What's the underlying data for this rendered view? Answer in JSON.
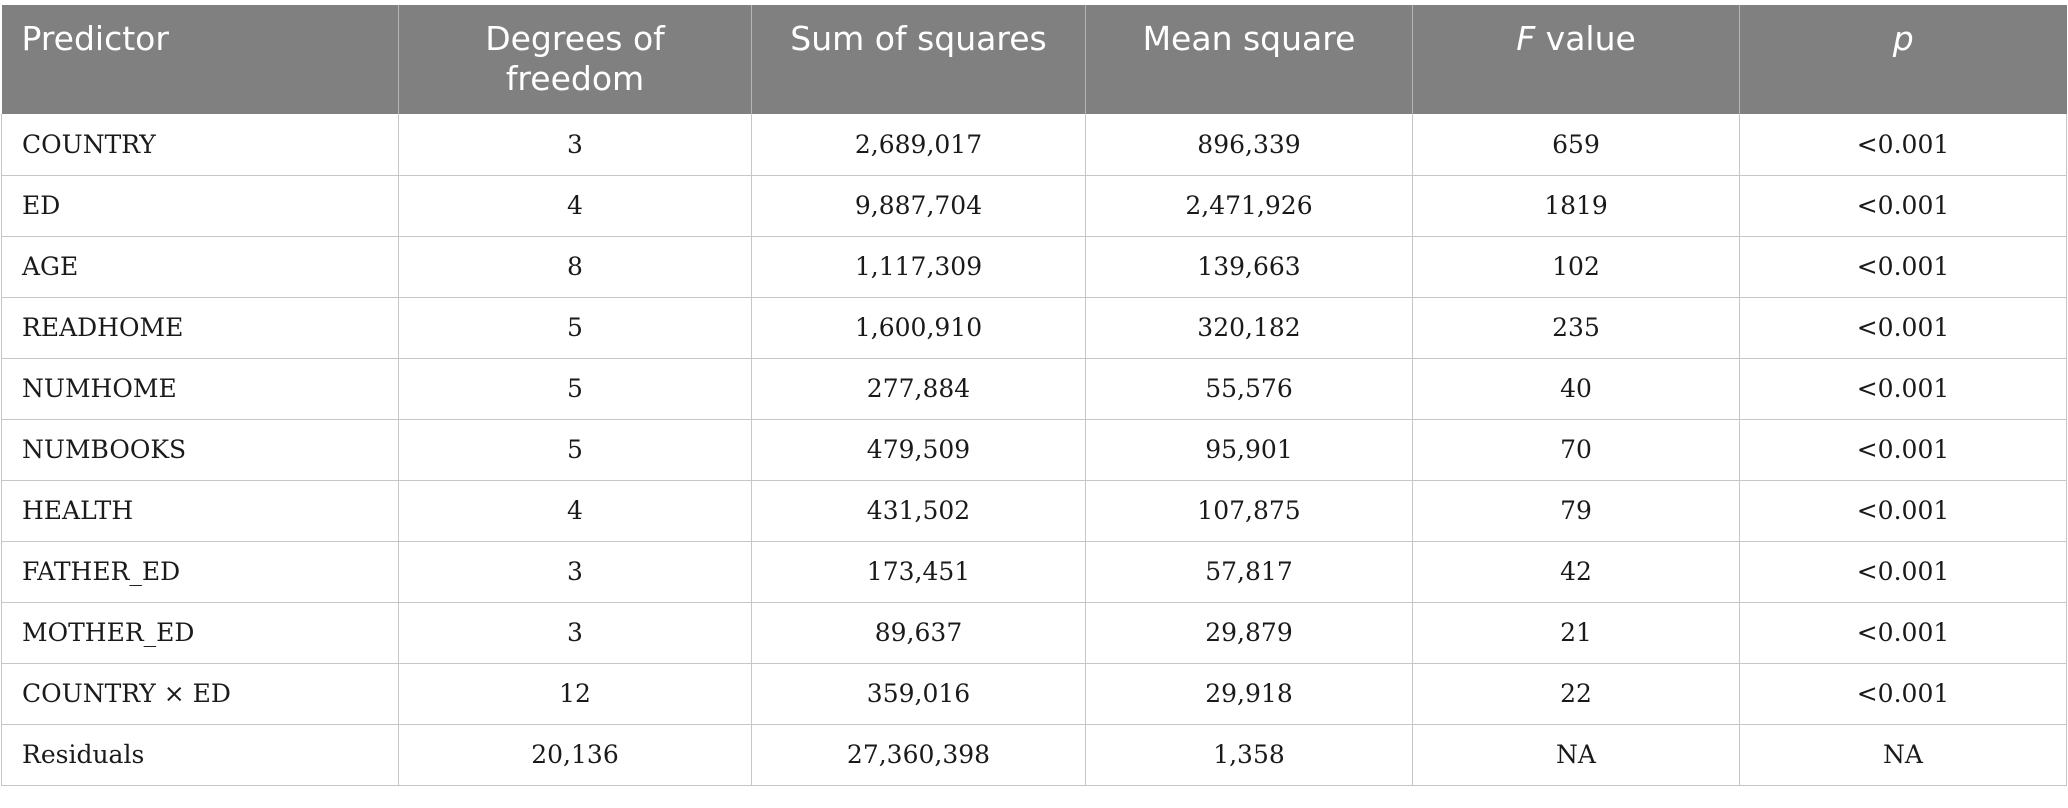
{
  "table": {
    "headers": {
      "predictor": "Predictor",
      "df": "Degrees of freedom",
      "ss": "Sum of squares",
      "ms": "Mean square",
      "f_italic": "F",
      "f_rest": " value",
      "p": "p"
    },
    "rows": [
      {
        "predictor": "COUNTRY",
        "df": "3",
        "ss": "2,689,017",
        "ms": "896,339",
        "f": "659",
        "p": "<0.001"
      },
      {
        "predictor": "ED",
        "df": "4",
        "ss": "9,887,704",
        "ms": "2,471,926",
        "f": "1819",
        "p": "<0.001"
      },
      {
        "predictor": "AGE",
        "df": "8",
        "ss": "1,117,309",
        "ms": "139,663",
        "f": "102",
        "p": "<0.001"
      },
      {
        "predictor": "READHOME",
        "df": "5",
        "ss": "1,600,910",
        "ms": "320,182",
        "f": "235",
        "p": "<0.001"
      },
      {
        "predictor": "NUMHOME",
        "df": "5",
        "ss": "277,884",
        "ms": "55,576",
        "f": "40",
        "p": "<0.001"
      },
      {
        "predictor": "NUMBOOKS",
        "df": "5",
        "ss": "479,509",
        "ms": "95,901",
        "f": "70",
        "p": "<0.001"
      },
      {
        "predictor": "HEALTH",
        "df": "4",
        "ss": "431,502",
        "ms": "107,875",
        "f": "79",
        "p": "<0.001"
      },
      {
        "predictor": "FATHER_ED",
        "df": "3",
        "ss": "173,451",
        "ms": "57,817",
        "f": "42",
        "p": "<0.001"
      },
      {
        "predictor": "MOTHER_ED",
        "df": "3",
        "ss": "89,637",
        "ms": "29,879",
        "f": "21",
        "p": "<0.001"
      },
      {
        "predictor": "COUNTRY × ED",
        "df": "12",
        "ss": "359,016",
        "ms": "29,918",
        "f": "22",
        "p": "<0.001"
      },
      {
        "predictor": "Residuals",
        "df": "20,136",
        "ss": "27,360,398",
        "ms": "1,358",
        "f": "NA",
        "p": "NA"
      }
    ]
  }
}
